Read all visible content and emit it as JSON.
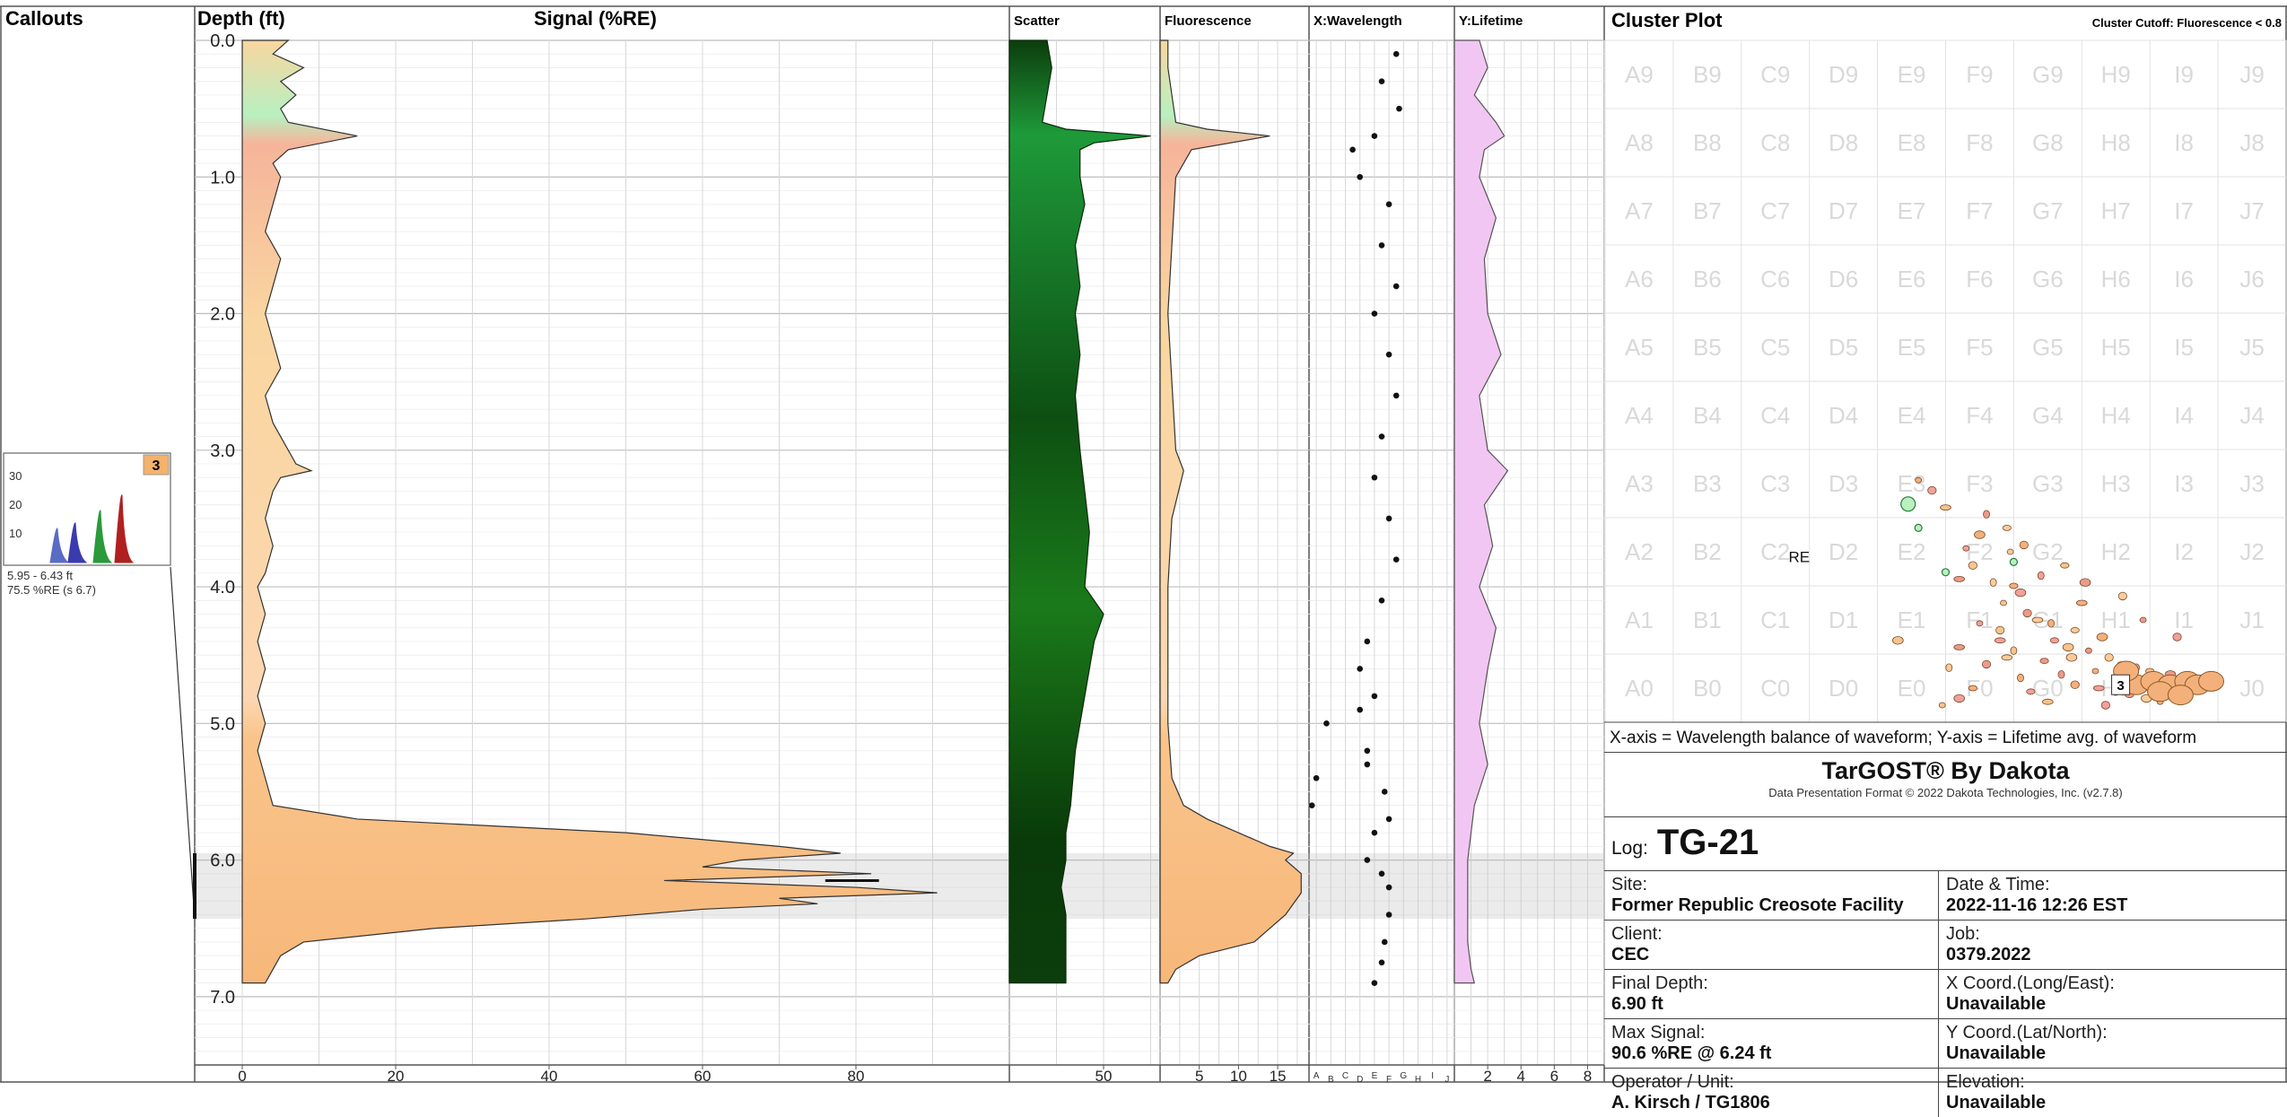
{
  "chart_data": {
    "type": "well-log",
    "depth_ylim": [
      0,
      7.5
    ],
    "depth_ticks": [
      0.0,
      1.0,
      2.0,
      3.0,
      4.0,
      5.0,
      6.0,
      7.0
    ],
    "highlight_depth_range": [
      5.95,
      6.43
    ],
    "panels": {
      "callouts": {
        "header": "Callouts"
      },
      "depth": {
        "header": "Depth (ft)"
      },
      "signal": {
        "header": "Signal (%RE)",
        "xlim": [
          0,
          100
        ],
        "xticks": [
          0,
          20,
          40,
          60,
          80
        ],
        "depth": [
          0.0,
          0.1,
          0.2,
          0.3,
          0.4,
          0.5,
          0.6,
          0.7,
          0.8,
          0.9,
          1.0,
          1.2,
          1.4,
          1.6,
          1.8,
          2.0,
          2.2,
          2.4,
          2.6,
          2.8,
          3.0,
          3.1,
          3.15,
          3.2,
          3.3,
          3.5,
          3.7,
          3.9,
          4.0,
          4.2,
          4.4,
          4.6,
          4.8,
          5.0,
          5.2,
          5.4,
          5.6,
          5.7,
          5.8,
          5.9,
          5.95,
          6.0,
          6.05,
          6.1,
          6.15,
          6.2,
          6.24,
          6.28,
          6.32,
          6.36,
          6.43,
          6.5,
          6.6,
          6.7,
          6.8,
          6.9
        ],
        "values": [
          6,
          4,
          8,
          5,
          7,
          5,
          6,
          15,
          6,
          4,
          5,
          4,
          3,
          5,
          4,
          3,
          4,
          5,
          3,
          4,
          6,
          7,
          9,
          5,
          4,
          3,
          4,
          3,
          2,
          3,
          2,
          3,
          2,
          3,
          2,
          3,
          4,
          15,
          50,
          70,
          78,
          65,
          60,
          82,
          55,
          80,
          90.6,
          70,
          75,
          60,
          45,
          25,
          8,
          5,
          4,
          3
        ]
      },
      "scatter": {
        "header": "Scatter",
        "xlim": [
          30,
          62
        ],
        "xticks": [
          50
        ],
        "depth": [
          0.0,
          0.2,
          0.4,
          0.6,
          0.65,
          0.7,
          0.75,
          0.8,
          1.0,
          1.2,
          1.5,
          1.8,
          2.0,
          2.3,
          2.6,
          3.0,
          3.3,
          3.6,
          4.0,
          4.2,
          4.4,
          4.8,
          5.2,
          5.6,
          5.8,
          6.0,
          6.2,
          6.4,
          6.6,
          6.8,
          6.9
        ],
        "values": [
          38,
          39,
          38,
          37,
          42,
          60,
          48,
          45,
          45,
          46,
          44,
          45,
          44,
          45,
          44,
          45,
          46,
          47,
          46,
          50,
          48,
          46,
          44,
          43,
          42,
          42,
          41,
          42,
          42,
          42,
          42
        ]
      },
      "fluorescence": {
        "header": "Fluorescence",
        "xlim": [
          0,
          19
        ],
        "xticks": [
          5,
          10,
          15
        ],
        "depth": [
          0.0,
          0.2,
          0.4,
          0.6,
          0.65,
          0.7,
          0.8,
          1.0,
          1.5,
          2.0,
          2.5,
          3.0,
          3.15,
          3.5,
          4.0,
          4.5,
          5.0,
          5.4,
          5.6,
          5.7,
          5.8,
          5.9,
          5.95,
          6.0,
          6.1,
          6.24,
          6.4,
          6.6,
          6.7,
          6.8,
          6.9
        ],
        "values": [
          1,
          1,
          1.5,
          2,
          6,
          14,
          4,
          2,
          1.5,
          1,
          1.5,
          2,
          3,
          1.5,
          1,
          1,
          1,
          1.5,
          3,
          6,
          10,
          14,
          17,
          16,
          18,
          18,
          16,
          12,
          5,
          2,
          1
        ]
      },
      "wavelength": {
        "header": "X:Wavelength",
        "tick_labels": [
          "A",
          "B",
          "C",
          "D",
          "E",
          "F",
          "G",
          "H",
          "I",
          "J"
        ],
        "points": [
          [
            0.02,
            5.6
          ],
          [
            0.05,
            5.4
          ],
          [
            0.12,
            5.0
          ],
          [
            0.35,
            4.9
          ],
          [
            0.4,
            5.2
          ],
          [
            0.45,
            5.8
          ],
          [
            0.4,
            6.0
          ],
          [
            0.5,
            6.1
          ],
          [
            0.55,
            6.2
          ],
          [
            0.55,
            6.4
          ],
          [
            0.52,
            6.6
          ],
          [
            0.5,
            6.75
          ],
          [
            0.45,
            6.9
          ],
          [
            0.3,
            0.8
          ],
          [
            0.35,
            1.0
          ],
          [
            0.6,
            0.1
          ],
          [
            0.5,
            0.3
          ],
          [
            0.62,
            0.5
          ],
          [
            0.45,
            0.7
          ],
          [
            0.55,
            1.2
          ],
          [
            0.5,
            1.5
          ],
          [
            0.6,
            1.8
          ],
          [
            0.45,
            2.0
          ],
          [
            0.55,
            2.3
          ],
          [
            0.6,
            2.6
          ],
          [
            0.5,
            2.9
          ],
          [
            0.45,
            3.2
          ],
          [
            0.55,
            3.5
          ],
          [
            0.6,
            3.8
          ],
          [
            0.5,
            4.1
          ],
          [
            0.4,
            4.4
          ],
          [
            0.35,
            4.6
          ],
          [
            0.45,
            4.8
          ],
          [
            0.4,
            5.3
          ],
          [
            0.52,
            5.5
          ],
          [
            0.55,
            5.7
          ]
        ]
      },
      "lifetime": {
        "header": "Y:Lifetime",
        "xlim": [
          0,
          9
        ],
        "xticks": [
          2,
          4,
          6,
          8
        ],
        "depth": [
          0.0,
          0.2,
          0.4,
          0.6,
          0.7,
          0.8,
          1.0,
          1.3,
          1.6,
          2.0,
          2.3,
          2.6,
          3.0,
          3.15,
          3.4,
          3.7,
          4.0,
          4.3,
          4.6,
          5.0,
          5.3,
          5.6,
          5.8,
          6.0,
          6.2,
          6.4,
          6.6,
          6.8,
          6.9
        ],
        "values": [
          1.5,
          2,
          1.2,
          2.5,
          3,
          1.8,
          1.5,
          2.5,
          1.8,
          2,
          2.8,
          1.5,
          2,
          3.2,
          1.8,
          2.3,
          1.5,
          2.5,
          2,
          1.5,
          2,
          1.2,
          1,
          0.8,
          0.8,
          0.8,
          0.8,
          1,
          1.2
        ]
      }
    },
    "callout": {
      "number": "3",
      "y_ticks": [
        "30",
        "20",
        "10"
      ],
      "range_text": "5.95 - 6.43 ft",
      "signal_text": "75.5 %RE (s 6.7)",
      "peak_colors": [
        "#5b6cc4",
        "#3b3bb0",
        "#2a9a3a",
        "#b02020"
      ]
    },
    "cluster_plot": {
      "title": "Cluster Plot",
      "cutoff_text": "Cluster Cutoff: Fluorescence < 0.8",
      "cols": [
        "A",
        "B",
        "C",
        "D",
        "E",
        "F",
        "G",
        "H",
        "I",
        "J"
      ],
      "rows": [
        "9",
        "8",
        "7",
        "6",
        "5",
        "4",
        "3",
        "2",
        "1",
        "0"
      ],
      "re_label": "RE",
      "cluster_label": "3",
      "points": [
        [
          4.6,
          3.55
        ],
        [
          4.8,
          3.4
        ],
        [
          5.0,
          3.15
        ],
        [
          5.6,
          3.05
        ],
        [
          5.9,
          2.85
        ],
        [
          5.5,
          2.75
        ],
        [
          5.3,
          2.55
        ],
        [
          5.4,
          2.3
        ],
        [
          5.2,
          2.1
        ],
        [
          5.7,
          2.05
        ],
        [
          6.0,
          2.0
        ],
        [
          6.1,
          1.9
        ],
        [
          5.85,
          1.75
        ],
        [
          6.2,
          1.6
        ],
        [
          6.35,
          1.5
        ],
        [
          6.55,
          1.45
        ],
        [
          6.6,
          1.2
        ],
        [
          6.8,
          1.1
        ],
        [
          7.1,
          1.05
        ],
        [
          7.4,
          0.95
        ],
        [
          7.6,
          0.85
        ],
        [
          7.8,
          0.8
        ],
        [
          8.0,
          0.75
        ],
        [
          8.3,
          0.7
        ],
        [
          8.5,
          0.65
        ],
        [
          6.9,
          0.55
        ],
        [
          7.25,
          0.5
        ],
        [
          7.5,
          0.45
        ],
        [
          7.7,
          0.4
        ],
        [
          7.95,
          0.35
        ],
        [
          8.15,
          0.3
        ],
        [
          7.35,
          0.25
        ],
        [
          6.5,
          0.3
        ],
        [
          6.7,
          0.7
        ],
        [
          6.9,
          1.35
        ],
        [
          7.3,
          1.25
        ],
        [
          5.5,
          1.45
        ],
        [
          5.8,
          1.35
        ],
        [
          5.2,
          1.1
        ],
        [
          5.05,
          0.8
        ],
        [
          5.4,
          0.5
        ],
        [
          5.2,
          0.35
        ],
        [
          4.95,
          0.25
        ],
        [
          5.6,
          0.85
        ],
        [
          5.9,
          0.95
        ],
        [
          6.1,
          0.65
        ],
        [
          6.25,
          0.45
        ],
        [
          4.3,
          1.2
        ],
        [
          7.9,
          1.5
        ],
        [
          7.6,
          1.85
        ],
        [
          7.0,
          1.75
        ],
        [
          6.4,
          2.15
        ],
        [
          6.75,
          2.3
        ],
        [
          7.05,
          2.05
        ],
        [
          5.95,
          2.5
        ],
        [
          6.15,
          2.6
        ],
        [
          5.8,
          1.2
        ],
        [
          6.0,
          1.05
        ],
        [
          6.45,
          0.9
        ],
        [
          6.85,
          0.95
        ],
        [
          7.2,
          0.75
        ],
        [
          8.4,
          1.25
        ]
      ],
      "big_points": [
        [
          7.8,
          0.55
        ],
        [
          8.05,
          0.6
        ],
        [
          8.3,
          0.55
        ],
        [
          8.55,
          0.6
        ],
        [
          8.7,
          0.55
        ],
        [
          8.9,
          0.6
        ],
        [
          7.65,
          0.75
        ],
        [
          8.15,
          0.45
        ],
        [
          8.45,
          0.4
        ]
      ],
      "green_points": [
        [
          4.45,
          3.2
        ],
        [
          4.6,
          2.85
        ],
        [
          5.0,
          2.2
        ],
        [
          6.0,
          2.35
        ]
      ]
    }
  },
  "info": {
    "axis_note": "X-axis = Wavelength balance of waveform; Y-axis = Lifetime avg. of waveform",
    "brand_title": "TarGOST® By Dakota",
    "brand_sub": "Data Presentation Format © 2022 Dakota Technologies, Inc. (v2.7.8)",
    "log_label": "Log:",
    "log_value": "TG-21",
    "site_label": "Site:",
    "site_value": "Former Republic Creosote Facility",
    "date_label": "Date & Time:",
    "date_value": "2022-11-16 12:26 EST",
    "client_label": "Client:",
    "client_value": "CEC",
    "job_label": "Job:",
    "job_value": "0379.2022",
    "depth_label": "Final Depth:",
    "depth_value": "6.90 ft",
    "xcoord_label": "X Coord.(Long/East):",
    "xcoord_value": "Unavailable",
    "signal_label": "Max Signal:",
    "signal_value": "90.6 %RE @ 6.24 ft",
    "ycoord_label": "Y Coord.(Lat/North):",
    "ycoord_value": "Unavailable",
    "operator_label": "Operator / Unit:",
    "operator_value": "A. Kirsch / TG1806",
    "elevation_label": "Elevation:",
    "elevation_value": "Unavailable"
  }
}
